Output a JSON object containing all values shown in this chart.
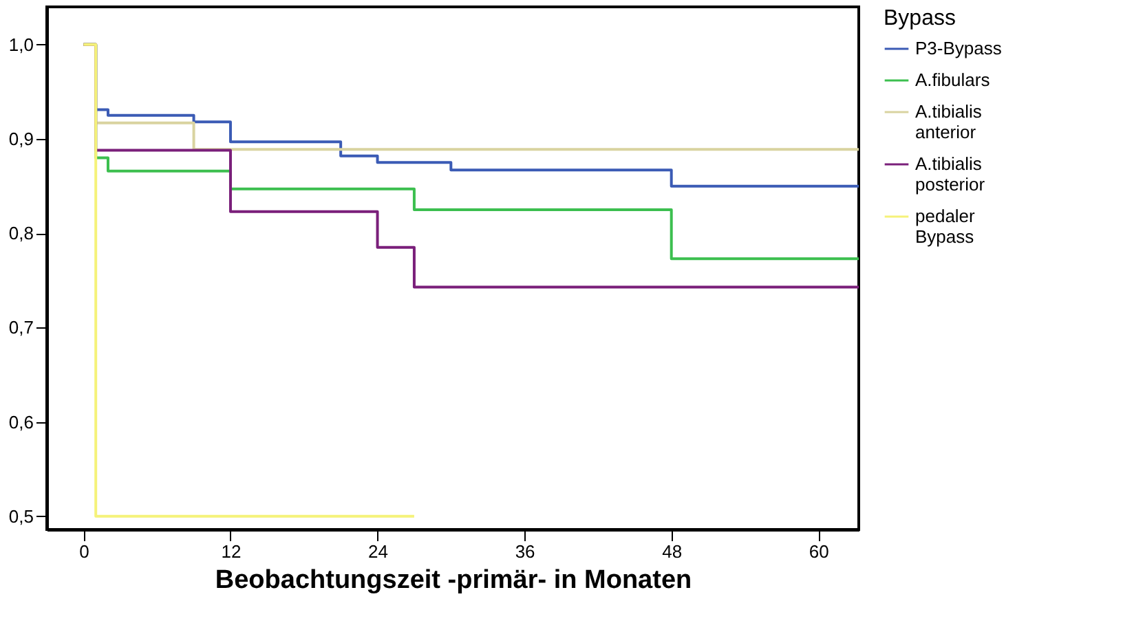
{
  "chart_data": {
    "type": "step",
    "xlabel": "Beobachtungszeit -primär- in Monaten",
    "legend_title": "Bypass",
    "legend": "right",
    "grid": false,
    "xlim": [
      -3,
      63.3
    ],
    "xticks": [
      0,
      12,
      24,
      36,
      48,
      60
    ],
    "ylim": [
      0.486,
      1.04
    ],
    "yticks": [
      {
        "value": 0.5,
        "label": "0,5"
      },
      {
        "value": 0.6,
        "label": "0,6"
      },
      {
        "value": 0.7,
        "label": "0,7"
      },
      {
        "value": 0.8,
        "label": "0,8"
      },
      {
        "value": 0.9,
        "label": "0,9"
      },
      {
        "value": 1.0,
        "label": "1,0"
      }
    ],
    "series": [
      {
        "name": "P3-Bypass",
        "color": "#3b5bb5",
        "x": [
          0,
          1,
          2,
          9,
          12,
          21,
          24,
          30,
          48,
          63.3
        ],
        "values": [
          1.0,
          0.931,
          0.925,
          0.918,
          0.897,
          0.882,
          0.875,
          0.867,
          0.85,
          0.85
        ]
      },
      {
        "name": "A.fibulars",
        "color": "#3cbf4f",
        "x": [
          0,
          1,
          2,
          12,
          27,
          48,
          63.3
        ],
        "values": [
          1.0,
          0.88,
          0.866,
          0.847,
          0.825,
          0.773,
          0.773
        ]
      },
      {
        "name": "A.tibialis anterior",
        "color": "#d9d3a0",
        "x": [
          0,
          1,
          9,
          63.3
        ],
        "values": [
          1.0,
          0.917,
          0.889,
          0.889
        ]
      },
      {
        "name": "A.tibialis posterior",
        "color": "#7a1f7a",
        "x": [
          0,
          1,
          12,
          24,
          27,
          63.3
        ],
        "values": [
          1.0,
          0.888,
          0.823,
          0.785,
          0.743,
          0.743
        ]
      },
      {
        "name": "pedaler Bypass",
        "color": "#f5f27a",
        "x": [
          0,
          1,
          27
        ],
        "values": [
          1.0,
          0.5,
          0.5
        ]
      }
    ]
  }
}
